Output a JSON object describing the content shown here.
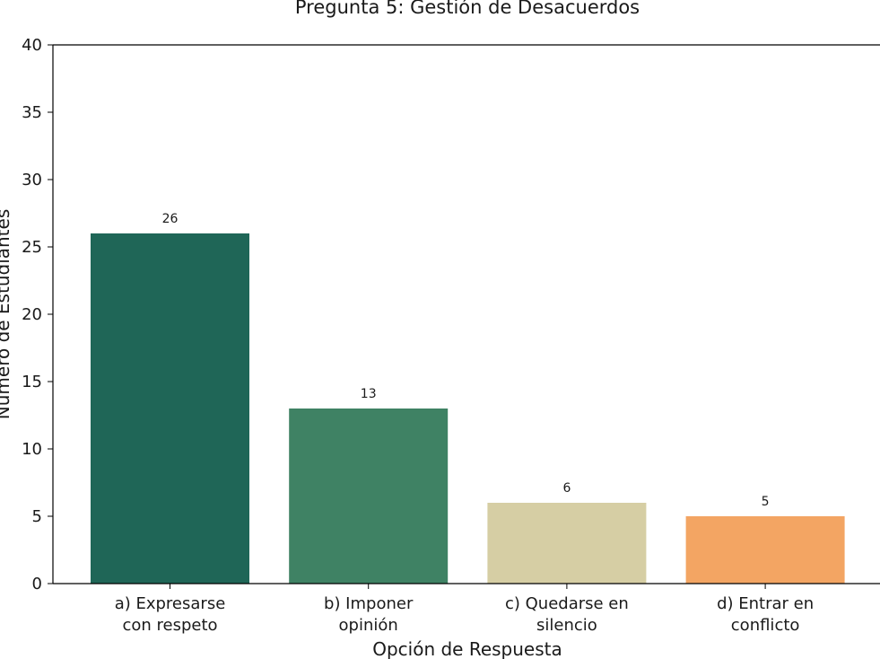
{
  "chart_data": {
    "type": "bar",
    "title": "Pregunta 5: Gestión de Desacuerdos",
    "xlabel": "Opción de Respuesta",
    "ylabel": "Número de Estudiantes",
    "ylim": [
      0,
      40
    ],
    "yticks": [
      0,
      5,
      10,
      15,
      20,
      25,
      30,
      35,
      40
    ],
    "categories": [
      [
        "a) Expresarse",
        "con respeto"
      ],
      [
        "b) Imponer",
        "opinión"
      ],
      [
        "c) Quedarse en",
        "silencio"
      ],
      [
        "d) Entrar en",
        "conflicto"
      ]
    ],
    "values": [
      26,
      13,
      6,
      5
    ],
    "colors": [
      "#1f6657",
      "#3f8264",
      "#d6cea4",
      "#f3a563"
    ],
    "grid": false,
    "legend": "none"
  }
}
